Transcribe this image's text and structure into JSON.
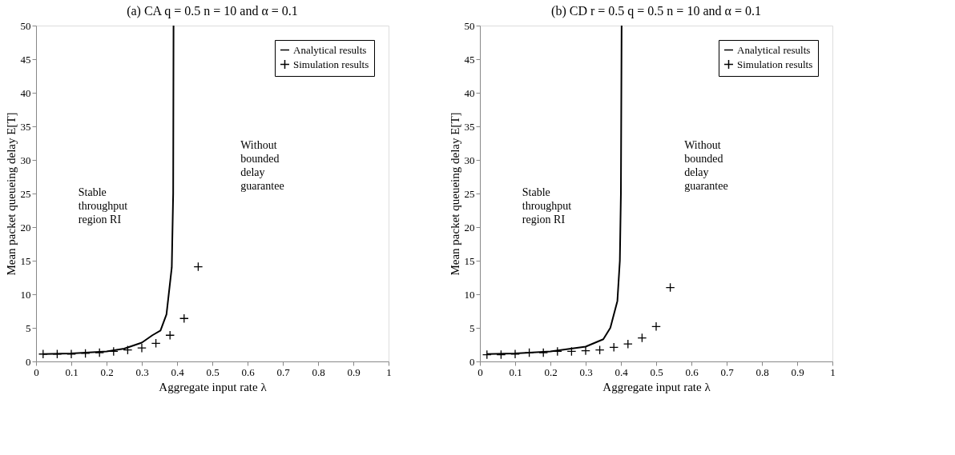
{
  "chart_data": [
    {
      "type": "line",
      "title": "(a) CA q = 0.5 n = 10 and α = 0.1",
      "xlabel": "Aggregate input rate λ",
      "ylabel": "Mean packet queueing delay E[T]",
      "xlim": [
        0,
        1
      ],
      "ylim": [
        0,
        50
      ],
      "xticks": [
        0,
        0.1,
        0.2,
        0.3,
        0.4,
        0.5,
        0.6,
        0.7,
        0.8,
        0.9,
        1
      ],
      "yticks": [
        0,
        5,
        10,
        15,
        20,
        25,
        30,
        35,
        40,
        45,
        50
      ],
      "grid": false,
      "legend": "top right",
      "annotations": [
        "Stable throughput region RI",
        "Without bounded delay guarantee"
      ],
      "series": [
        {
          "name": "Analytical results",
          "color": "#000000",
          "line_style": "solid",
          "x": [
            0.02,
            0.1,
            0.2,
            0.25,
            0.3,
            0.33,
            0.353,
            0.37,
            0.385,
            0.389,
            0.39
          ],
          "values": [
            1.1,
            1.2,
            1.5,
            1.9,
            2.8,
            3.9,
            4.6,
            7,
            14,
            25,
            50
          ]
        },
        {
          "name": "Simulation results",
          "type": "scatter",
          "color": "#000000",
          "marker": "cross",
          "x": [
            0.02,
            0.06,
            0.1,
            0.14,
            0.18,
            0.22,
            0.26,
            0.3,
            0.34,
            0.38,
            0.42,
            0.46
          ],
          "values": [
            1.1,
            1.1,
            1.1,
            1.2,
            1.3,
            1.5,
            1.7,
            2.0,
            2.7,
            3.9,
            6.4,
            14.1
          ]
        }
      ]
    },
    {
      "type": "line",
      "title": "(b) CD r = 0.5 q = 0.5 n = 10 and α = 0.1",
      "xlabel": "Aggregate input rate λ",
      "ylabel": "Mean packet queueing delay E[T]",
      "xlim": [
        0,
        1
      ],
      "ylim": [
        0,
        50
      ],
      "xticks": [
        0,
        0.1,
        0.2,
        0.3,
        0.4,
        0.5,
        0.6,
        0.7,
        0.8,
        0.9,
        1
      ],
      "yticks": [
        0,
        5,
        10,
        15,
        20,
        25,
        30,
        35,
        40,
        45,
        50
      ],
      "grid": false,
      "legend": "top right",
      "annotations": [
        "Stable throughput region RI",
        "Without bounded delay guarantee"
      ],
      "series": [
        {
          "name": "Analytical results",
          "color": "#000000",
          "line_style": "solid",
          "x": [
            0.02,
            0.1,
            0.2,
            0.3,
            0.35,
            0.37,
            0.39,
            0.397,
            0.4,
            0.402
          ],
          "values": [
            1.1,
            1.2,
            1.5,
            2.2,
            3.3,
            5,
            9,
            15,
            25,
            50
          ]
        },
        {
          "name": "Simulation results",
          "type": "scatter",
          "color": "#000000",
          "marker": "cross",
          "x": [
            0.02,
            0.06,
            0.1,
            0.14,
            0.18,
            0.22,
            0.26,
            0.3,
            0.34,
            0.38,
            0.42,
            0.46,
            0.5,
            0.54
          ],
          "values": [
            1.0,
            1.0,
            1.1,
            1.3,
            1.3,
            1.5,
            1.5,
            1.6,
            1.7,
            2.1,
            2.6,
            3.5,
            5.2,
            11.0
          ]
        }
      ]
    }
  ]
}
